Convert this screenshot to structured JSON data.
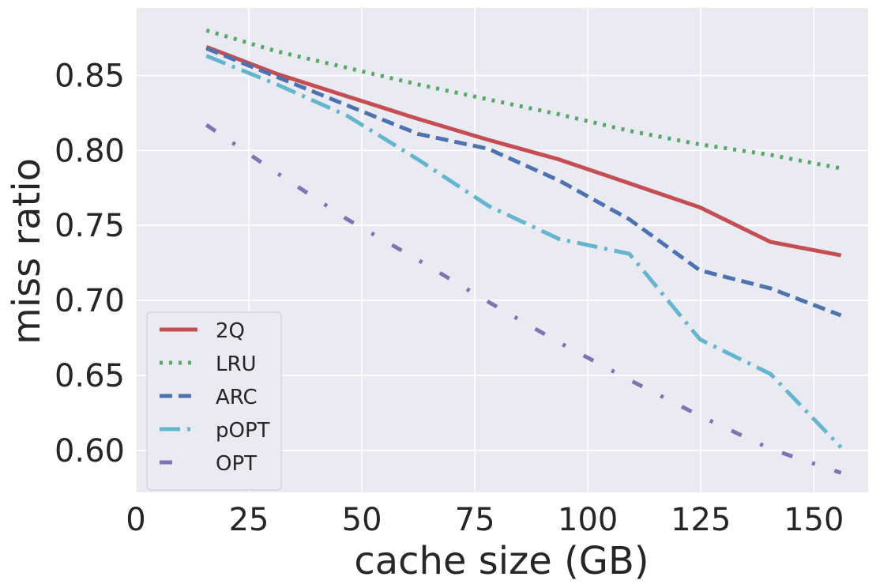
{
  "chart_data": {
    "type": "line",
    "title": "",
    "xlabel": "cache size (GB)",
    "ylabel": "miss ratio",
    "xlim": [
      0,
      162
    ],
    "ylim": [
      0.572,
      0.895
    ],
    "xticks": [
      0,
      25,
      50,
      75,
      100,
      125,
      150
    ],
    "xtick_labels": [
      "0",
      "25",
      "50",
      "75",
      "100",
      "125",
      "150"
    ],
    "yticks": [
      0.6,
      0.65,
      0.7,
      0.75,
      0.8,
      0.85
    ],
    "ytick_labels": [
      "0.60",
      "0.65",
      "0.70",
      "0.75",
      "0.80",
      "0.85"
    ],
    "grid": true,
    "legend_position": "lower-left",
    "background": "#eaeaf2",
    "series": [
      {
        "name": "2Q",
        "color": "#c44e52",
        "dash": "solid",
        "x": [
          15.6,
          31.2,
          46.8,
          62.4,
          78,
          93.6,
          109.2,
          124.8,
          140.4,
          156
        ],
        "y": [
          0.869,
          0.851,
          0.836,
          0.821,
          0.807,
          0.794,
          0.778,
          0.762,
          0.739,
          0.73
        ]
      },
      {
        "name": "LRU",
        "color": "#55a868",
        "dash": "dotted",
        "x": [
          15.6,
          31.2,
          46.8,
          62.4,
          78,
          93.6,
          109.2,
          124.8,
          140.4,
          156
        ],
        "y": [
          0.88,
          0.866,
          0.855,
          0.844,
          0.834,
          0.824,
          0.813,
          0.804,
          0.797,
          0.788
        ]
      },
      {
        "name": "ARC",
        "color": "#4c72b0",
        "dash": "dashed",
        "x": [
          15.6,
          31.2,
          46.8,
          62.4,
          78,
          93.6,
          109.2,
          124.8,
          140.4,
          156
        ],
        "y": [
          0.868,
          0.849,
          0.83,
          0.811,
          0.801,
          0.78,
          0.754,
          0.72,
          0.708,
          0.69
        ]
      },
      {
        "name": "pOPT",
        "color": "#64b5cd",
        "dash": "dashdot",
        "x": [
          15.6,
          31.2,
          46.8,
          62.4,
          78,
          93.6,
          109.2,
          124.8,
          140.4,
          156
        ],
        "y": [
          0.863,
          0.844,
          0.823,
          0.794,
          0.763,
          0.741,
          0.731,
          0.674,
          0.651,
          0.602
        ]
      },
      {
        "name": "OPT",
        "color": "#8172b2",
        "dash": "loosedashdot",
        "x": [
          15.6,
          31.2,
          46.8,
          62.4,
          78,
          93.6,
          109.2,
          124.8,
          140.4,
          156
        ],
        "y": [
          0.817,
          0.785,
          0.754,
          0.727,
          0.699,
          0.672,
          0.647,
          0.623,
          0.601,
          0.585
        ]
      }
    ]
  }
}
